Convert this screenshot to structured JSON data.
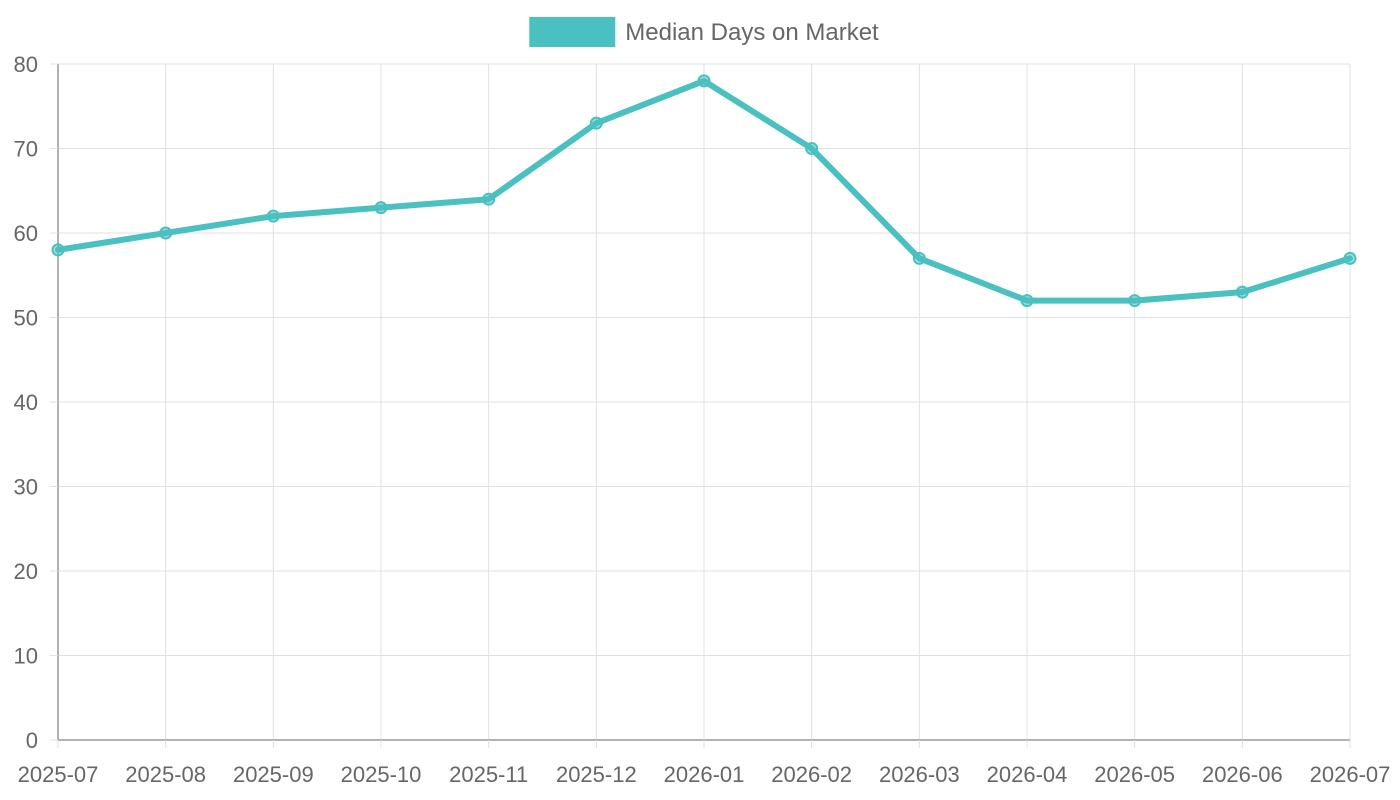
{
  "colors": {
    "series": "#4bc0c0",
    "point_fill": "rgba(75, 192, 192, 0.5)",
    "grid": "#e0e0e0",
    "axis": "#999999",
    "text": "#666666"
  },
  "chart_data": {
    "type": "line",
    "title": "",
    "xlabel": "",
    "ylabel": "",
    "categories": [
      "2025-07",
      "2025-08",
      "2025-09",
      "2025-10",
      "2025-11",
      "2025-12",
      "2026-01",
      "2026-02",
      "2026-03",
      "2026-04",
      "2026-05",
      "2026-06",
      "2026-07"
    ],
    "series": [
      {
        "name": "Median Days on Market",
        "values": [
          58,
          60,
          62,
          63,
          64,
          73,
          78,
          70,
          57,
          52,
          52,
          53,
          57
        ]
      }
    ],
    "ylim": [
      0,
      80
    ],
    "yticks": [
      0,
      10,
      20,
      30,
      40,
      50,
      60,
      70,
      80
    ],
    "grid": true,
    "legend": "top-center"
  }
}
